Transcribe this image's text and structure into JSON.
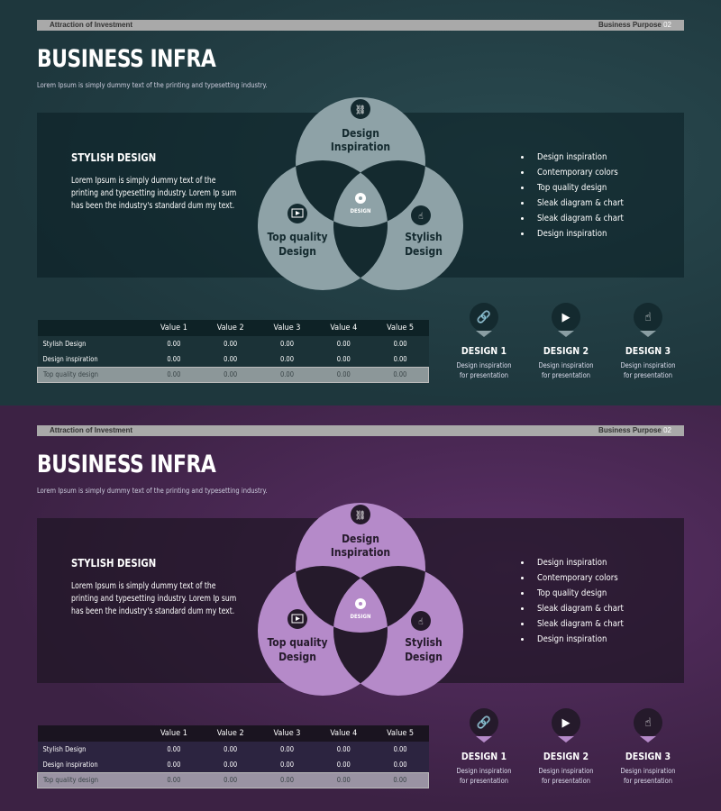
{
  "slides": [
    {
      "theme": {
        "bg": "#1e373d",
        "bg2": "#2a4a50",
        "panel": "rgba(10,30,34,0.55)",
        "venn": "#8ea2a7",
        "dark": "#142a2f",
        "thead": "#0e2226",
        "row": "#1b3237",
        "last": "#8c9799",
        "tri": "#8a9ea3"
      }
    },
    {
      "theme": {
        "bg": "#3c2244",
        "bg2": "#5a2f66",
        "panel": "rgba(30,22,36,0.7)",
        "venn": "#b58ac9",
        "dark": "#251a2b",
        "thead": "#1a1420",
        "row": "#2c2440",
        "last": "#9a93a3",
        "tri": "#b58ac9"
      }
    }
  ],
  "header": {
    "left": "Attraction  of Investment",
    "right": "Business  Purpose",
    "num": "02"
  },
  "title": "BUSINESS INFRA",
  "subtitle": "Lorem Ipsum is simply dummy text of the printing and typesetting industry.",
  "left": {
    "heading": "STYLISH DESIGN",
    "text": "Lorem Ipsum is simply dummy text of the printing and typesetting industry. Lorem Ip sum has been the industry's standard dum my text."
  },
  "venn": {
    "top": [
      "Design",
      "Inspiration"
    ],
    "left": [
      "Top quality",
      "Design"
    ],
    "right": [
      "Stylish",
      "Design"
    ],
    "center": "DESIGN",
    "icons": [
      "link-icon",
      "video-icon",
      "touch-icon",
      "logo-icon"
    ]
  },
  "bullets": [
    "Design inspiration",
    "Contemporary colors",
    "Top quality design",
    "Sleak diagram & chart",
    "Sleak diagram & chart",
    "Design inspiration"
  ],
  "table": {
    "headers": [
      "",
      "Value 1",
      "Value 2",
      "Value 3",
      "Value 4",
      "Value 5"
    ],
    "rows": [
      [
        "Stylish Design",
        "0.00",
        "0.00",
        "0.00",
        "0.00",
        "0.00"
      ],
      [
        "Design inspiration",
        "0.00",
        "0.00",
        "0.00",
        "0.00",
        "0.00"
      ],
      [
        "Top quality design",
        "0.00",
        "0.00",
        "0.00",
        "0.00",
        "0.00"
      ]
    ]
  },
  "designs": [
    {
      "label": "DESIGN 1",
      "text": [
        "Design inspiration",
        "for presentation"
      ],
      "icon": "link-icon"
    },
    {
      "label": "DESIGN 2",
      "text": [
        "Design inspiration",
        "for presentation"
      ],
      "icon": "video-icon"
    },
    {
      "label": "DESIGN 3",
      "text": [
        "Design inspiration",
        "for presentation"
      ],
      "icon": "touch-icon"
    }
  ]
}
